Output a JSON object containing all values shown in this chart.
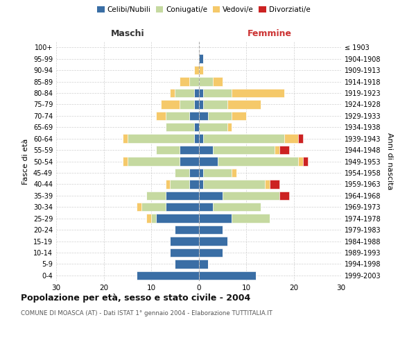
{
  "age_groups": [
    "0-4",
    "5-9",
    "10-14",
    "15-19",
    "20-24",
    "25-29",
    "30-34",
    "35-39",
    "40-44",
    "45-49",
    "50-54",
    "55-59",
    "60-64",
    "65-69",
    "70-74",
    "75-79",
    "80-84",
    "85-89",
    "90-94",
    "95-99",
    "100+"
  ],
  "birth_years": [
    "1999-2003",
    "1994-1998",
    "1989-1993",
    "1984-1988",
    "1979-1983",
    "1974-1978",
    "1969-1973",
    "1964-1968",
    "1959-1963",
    "1954-1958",
    "1949-1953",
    "1944-1948",
    "1939-1943",
    "1934-1938",
    "1929-1933",
    "1924-1928",
    "1919-1923",
    "1914-1918",
    "1909-1913",
    "1904-1908",
    "≤ 1903"
  ],
  "colors": {
    "celibi": "#3a6ea5",
    "coniugati": "#c5d9a0",
    "vedovi": "#f5c96a",
    "divorziati": "#cc2222"
  },
  "males": {
    "celibi": [
      13,
      5,
      6,
      6,
      5,
      9,
      7,
      7,
      2,
      2,
      4,
      4,
      1,
      1,
      2,
      1,
      1,
      0,
      0,
      0,
      0
    ],
    "coniugati": [
      0,
      0,
      0,
      0,
      0,
      1,
      5,
      4,
      4,
      3,
      11,
      5,
      14,
      6,
      5,
      3,
      4,
      2,
      0,
      0,
      0
    ],
    "vedovi": [
      0,
      0,
      0,
      0,
      0,
      1,
      1,
      0,
      1,
      0,
      1,
      0,
      1,
      0,
      2,
      4,
      1,
      2,
      1,
      0,
      0
    ],
    "divorziati": [
      0,
      0,
      0,
      0,
      0,
      0,
      0,
      0,
      0,
      0,
      0,
      0,
      0,
      0,
      0,
      0,
      0,
      0,
      0,
      0,
      0
    ]
  },
  "females": {
    "celibi": [
      12,
      2,
      5,
      6,
      5,
      7,
      3,
      5,
      1,
      1,
      4,
      3,
      1,
      0,
      2,
      1,
      1,
      0,
      0,
      1,
      0
    ],
    "coniugati": [
      0,
      0,
      0,
      0,
      0,
      8,
      10,
      12,
      13,
      6,
      17,
      13,
      17,
      6,
      5,
      5,
      6,
      3,
      0,
      0,
      0
    ],
    "vedovi": [
      0,
      0,
      0,
      0,
      0,
      0,
      0,
      0,
      1,
      1,
      1,
      1,
      3,
      1,
      3,
      7,
      11,
      2,
      1,
      0,
      0
    ],
    "divorziati": [
      0,
      0,
      0,
      0,
      0,
      0,
      0,
      2,
      2,
      0,
      1,
      2,
      1,
      0,
      0,
      0,
      0,
      0,
      0,
      0,
      0
    ]
  },
  "xlim": 30,
  "title": "Popolazione per età, sesso e stato civile - 2004",
  "subtitle": "COMUNE DI MOASCA (AT) - Dati ISTAT 1° gennaio 2004 - Elaborazione TUTTITALIA.IT",
  "ylabel_left": "Fasce di età",
  "ylabel_right": "Anni di nascita",
  "header_maschi": "Maschi",
  "header_femmine": "Femmine",
  "background_color": "#ffffff",
  "grid_color": "#cccccc",
  "legend_labels": [
    "Celibi/Nubili",
    "Coniugati/e",
    "Vedovi/e",
    "Divorziati/e"
  ]
}
